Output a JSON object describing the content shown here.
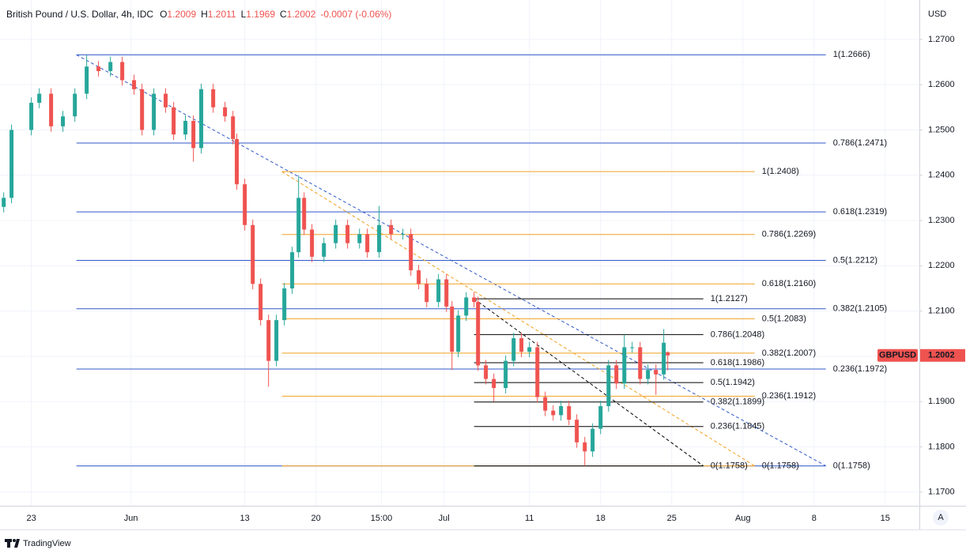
{
  "header": {
    "symbol": "British Pound / U.S. Dollar, 4h, IDC",
    "open_prefix": "O",
    "high_prefix": "H",
    "low_prefix": "L",
    "close_prefix": "C",
    "change": "-0.0007 (-0.06%)"
  },
  "chart_data": {
    "type": "candlestick",
    "x": [
      -1.94,
      -1.39,
      0,
      0.56,
      1.39,
      2.22,
      3.06,
      3.89,
      4.72,
      5.56,
      6.39,
      7.22,
      7.78,
      8.61,
      9.44,
      10,
      10.83,
      11.39,
      11.94,
      12.78,
      13.61,
      14.17,
      14.44,
      15,
      15.56,
      16.11,
      16.67,
      17.22,
      17.78,
      18.33,
      18.78,
      19.17,
      19.72,
      20.56,
      21.39,
      22.22,
      23.06,
      23.61,
      24.44,
      25.28,
      26.11,
      26.67,
      27.22,
      27.78,
      28.61,
      29.17,
      29.56,
      30,
      30.56,
      31.11,
      31.39,
      31.94,
      32.5,
      33.33,
      33.89,
      34.44,
      35,
      35.56,
      36.11,
      36.67,
      37.22,
      37.78,
      38.33,
      38.89,
      39.44,
      40,
      40.56,
      41.11,
      41.67,
      42.22,
      42.78,
      43.33,
      43.89,
      44.44,
      44.72
    ],
    "open": [
      1.233,
      1.235,
      1.25,
      1.256,
      1.258,
      1.2508,
      1.253,
      1.258,
      1.264,
      1.263,
      1.265,
      1.261,
      1.259,
      1.25,
      1.258,
      1.255,
      1.249,
      1.252,
      1.246,
      1.259,
      1.255,
      1.253,
      1.248,
      1.238,
      1.229,
      1.216,
      1.208,
      1.199,
      1.208,
      1.215,
      1.223,
      1.235,
      1.228,
      1.222,
      1.225,
      1.229,
      1.225,
      1.227,
      1.223,
      1.229,
      1.227,
      1.227,
      1.219,
      1.216,
      1.212,
      1.217,
      1.211,
      1.201,
      1.209,
      1.213,
      1.212,
      1.198,
      1.195,
      1.193,
      1.199,
      1.204,
      1.201,
      1.202,
      1.191,
      1.188,
      1.187,
      1.189,
      1.186,
      1.181,
      1.179,
      1.184,
      1.189,
      1.198,
      1.194,
      1.202,
      1.202,
      1.195,
      1.197,
      1.196,
      1.2009
    ],
    "high": [
      1.2362,
      1.2512,
      1.2572,
      1.2592,
      1.2592,
      1.2542,
      1.2592,
      1.2666,
      1.2652,
      1.2662,
      1.2662,
      1.2622,
      1.2602,
      1.2592,
      1.2592,
      1.2562,
      1.2532,
      1.2532,
      1.2602,
      1.2602,
      1.2562,
      1.2542,
      1.2492,
      1.2392,
      1.2302,
      1.2172,
      1.2092,
      1.2092,
      1.2162,
      1.2242,
      1.24,
      1.2362,
      1.2292,
      1.2262,
      1.2302,
      1.2302,
      1.2282,
      1.2282,
      1.2332,
      1.2302,
      1.2282,
      1.2282,
      1.2202,
      1.2172,
      1.2182,
      1.2182,
      1.2122,
      1.2102,
      1.2142,
      1.2142,
      1.2132,
      1.1992,
      1.1962,
      1.2002,
      1.2052,
      1.2052,
      1.2032,
      1.2032,
      1.1922,
      1.1892,
      1.1902,
      1.1902,
      1.1872,
      1.1822,
      1.1852,
      1.1902,
      1.1992,
      1.1992,
      1.2048,
      1.2032,
      1.2032,
      1.1982,
      1.1982,
      1.206,
      1.2011
    ],
    "low": [
      1.2318,
      1.2338,
      1.2488,
      1.2548,
      1.2496,
      1.2496,
      1.2518,
      1.2568,
      1.2618,
      1.2618,
      1.2598,
      1.2578,
      1.2488,
      1.2488,
      1.2538,
      1.2478,
      1.2478,
      1.243,
      1.2448,
      1.2538,
      1.2518,
      1.2468,
      1.2368,
      1.2278,
      1.2148,
      1.2068,
      1.1933,
      1.1978,
      1.2068,
      1.2138,
      1.2218,
      1.2268,
      1.2208,
      1.2208,
      1.2238,
      1.2238,
      1.2238,
      1.2218,
      1.2218,
      1.2258,
      1.2258,
      1.2178,
      1.2148,
      1.2108,
      1.2108,
      1.2098,
      1.197,
      1.1998,
      1.2078,
      1.2108,
      1.1968,
      1.1938,
      1.19,
      1.1918,
      1.1978,
      1.1998,
      1.1998,
      1.1898,
      1.1868,
      1.1858,
      1.1858,
      1.1848,
      1.1798,
      1.1758,
      1.1778,
      1.1828,
      1.1878,
      1.1928,
      1.1928,
      1.2008,
      1.1938,
      1.1938,
      1.1915,
      1.1948,
      1.1969
    ],
    "close": [
      1.235,
      1.25,
      1.256,
      1.258,
      1.2508,
      1.253,
      1.258,
      1.264,
      1.263,
      1.265,
      1.261,
      1.259,
      1.25,
      1.258,
      1.255,
      1.249,
      1.252,
      1.246,
      1.259,
      1.255,
      1.253,
      1.248,
      1.238,
      1.229,
      1.216,
      1.208,
      1.199,
      1.208,
      1.215,
      1.223,
      1.235,
      1.228,
      1.222,
      1.225,
      1.229,
      1.225,
      1.227,
      1.223,
      1.229,
      1.227,
      1.227,
      1.219,
      1.216,
      1.212,
      1.217,
      1.211,
      1.201,
      1.209,
      1.213,
      1.212,
      1.198,
      1.195,
      1.193,
      1.199,
      1.204,
      1.201,
      1.202,
      1.191,
      1.188,
      1.187,
      1.189,
      1.186,
      1.181,
      1.179,
      1.184,
      1.189,
      1.198,
      1.194,
      1.202,
      1.202,
      1.195,
      1.197,
      1.196,
      1.203,
      1.2002
    ],
    "up_color": "#26a69a",
    "down_color": "#ef5350",
    "xlim": [
      -2.2,
      62.4
    ],
    "xticks": [
      {
        "value": 0,
        "label": "23"
      },
      {
        "value": 7,
        "label": "Jun"
      },
      {
        "value": 15,
        "label": "13"
      },
      {
        "value": 20,
        "label": "20"
      },
      {
        "value": 24.6,
        "label": "15:00"
      },
      {
        "value": 29,
        "label": "Jul"
      },
      {
        "value": 35,
        "label": "11"
      },
      {
        "value": 40,
        "label": "18"
      },
      {
        "value": 45,
        "label": "25"
      },
      {
        "value": 50,
        "label": "Aug"
      },
      {
        "value": 55,
        "label": "8"
      },
      {
        "value": 60,
        "label": "15"
      }
    ],
    "ylim": [
      1.167,
      1.2787
    ],
    "yticks": [
      {
        "value": 1.27,
        "label": "1.2700"
      },
      {
        "value": 1.26,
        "label": "1.2600"
      },
      {
        "value": 1.25,
        "label": "1.2500"
      },
      {
        "value": 1.24,
        "label": "1.2400"
      },
      {
        "value": 1.23,
        "label": "1.2300"
      },
      {
        "value": 1.22,
        "label": "1.2200"
      },
      {
        "value": 1.21,
        "label": "1.2100"
      },
      {
        "value": 1.2,
        "label": "1.2000"
      },
      {
        "value": 1.19,
        "label": "1.1900"
      },
      {
        "value": 1.18,
        "label": "1.1800"
      },
      {
        "value": 1.17,
        "label": "1.1700"
      }
    ],
    "grid": true,
    "currency": "USD",
    "symbol_tag": "GBPUSD",
    "fibonacci": [
      {
        "color": "#3158c9",
        "start": 3.17,
        "end": 55.83,
        "levels": [
          {
            "value": 1.2666,
            "label": "1(1.2666)"
          },
          {
            "value": 1.2471,
            "label": "0.786(1.2471)"
          },
          {
            "value": 1.2319,
            "label": "0.618(1.2319)"
          },
          {
            "value": 1.2212,
            "label": "0.5(1.2212)"
          },
          {
            "value": 1.2105,
            "label": "0.382(1.2105)"
          },
          {
            "value": 1.1972,
            "label": "0.236(1.1972)"
          },
          {
            "value": 1.1758,
            "label": "0(1.1758)"
          }
        ]
      },
      {
        "color": "#f0a020",
        "start": 17.61,
        "end": 50.83,
        "levels": [
          {
            "value": 1.2408,
            "label": "1(1.2408)"
          },
          {
            "value": 1.2269,
            "label": "0.786(1.2269)"
          },
          {
            "value": 1.216,
            "label": "0.618(1.2160)"
          },
          {
            "value": 1.2083,
            "label": "0.5(1.2083)"
          },
          {
            "value": 1.2007,
            "label": "0.382(1.2007)"
          },
          {
            "value": 1.1912,
            "label": "0.236(1.1912)"
          },
          {
            "value": 1.1758,
            "label": "0(1.1758)"
          }
        ]
      },
      {
        "color": "#000000",
        "start": 31.11,
        "end": 47.22,
        "levels": [
          {
            "value": 1.2127,
            "label": "1(1.2127)"
          },
          {
            "value": 1.2048,
            "label": "0.786(1.2048)"
          },
          {
            "value": 1.1986,
            "label": "0.618(1.1986)"
          },
          {
            "value": 1.1942,
            "label": "0.5(1.1942)"
          },
          {
            "value": 1.1899,
            "label": "0.382(1.1899)"
          },
          {
            "value": 1.1845,
            "label": "0.236(1.1845)"
          },
          {
            "value": 1.1758,
            "label": "0(1.1758)"
          }
        ]
      }
    ]
  },
  "axis_button": "A",
  "footer": {
    "brand": "TradingView"
  }
}
